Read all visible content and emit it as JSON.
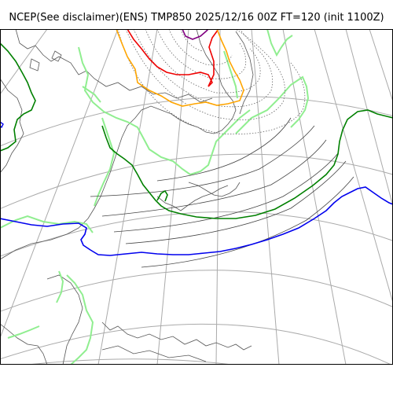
{
  "title": "NCEP(See disclaimer)(ENS) TMP850 2025/12/16 00Z FT=120 (init 1100Z)",
  "map": {
    "projection": "polar-stereographic",
    "region": "East Asia / North Pacific",
    "colors": {
      "frame": "#000000",
      "grid": "#aaaaaa",
      "coast": "#555555",
      "contour": "#444444",
      "contour_dotted": "#666666",
      "blue": "#0000ee",
      "green": "#008000",
      "light_green": "#90ee90",
      "orange": "#ffa500",
      "red": "#ee0000",
      "purple": "#800080"
    }
  }
}
